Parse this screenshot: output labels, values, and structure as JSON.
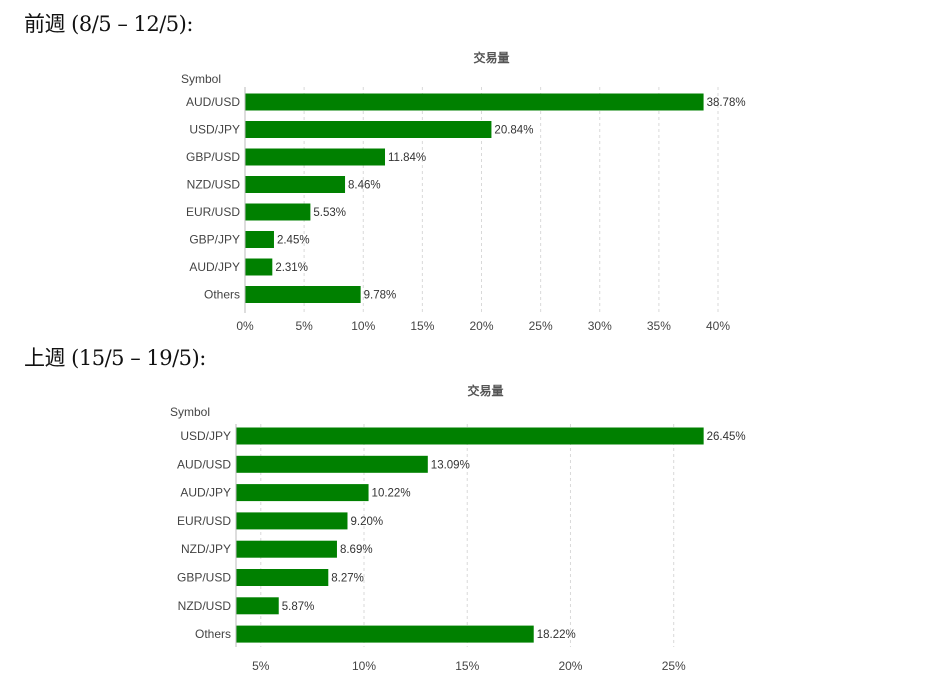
{
  "headings": [
    "前週 (8/5 – 12/5):",
    "上週 (15/5 – 19/5):"
  ],
  "chart_data": [
    {
      "type": "bar",
      "orientation": "horizontal",
      "title": "交易量",
      "ylabel": "Symbol",
      "categories": [
        "AUD/USD",
        "USD/JPY",
        "GBP/USD",
        "NZD/USD",
        "EUR/USD",
        "GBP/JPY",
        "AUD/JPY",
        "Others"
      ],
      "values": [
        38.78,
        20.84,
        11.84,
        8.46,
        5.53,
        2.45,
        2.31,
        9.78
      ],
      "value_labels": [
        "38.78%",
        "20.84%",
        "11.84%",
        "8.46%",
        "5.53%",
        "2.45%",
        "2.31%",
        "9.78%"
      ],
      "xlim": [
        0,
        40
      ],
      "xticks": [
        0,
        5,
        10,
        15,
        20,
        25,
        30,
        35,
        40
      ],
      "xtick_labels": [
        "0%",
        "5%",
        "10%",
        "15%",
        "20%",
        "25%",
        "30%",
        "35%",
        "40%"
      ],
      "bar_color": "#008000",
      "grid": true
    },
    {
      "type": "bar",
      "orientation": "horizontal",
      "title": "交易量",
      "ylabel": "Symbol",
      "categories": [
        "USD/JPY",
        "AUD/USD",
        "AUD/JPY",
        "EUR/USD",
        "NZD/JPY",
        "GBP/USD",
        "NZD/USD",
        "Others"
      ],
      "values": [
        26.45,
        13.09,
        10.22,
        9.2,
        8.69,
        8.27,
        5.87,
        18.22
      ],
      "value_labels": [
        "26.45%",
        "13.09%",
        "10.22%",
        "9.20%",
        "8.69%",
        "8.27%",
        "5.87%",
        "18.22%"
      ],
      "xlim": [
        3.8,
        27
      ],
      "xticks": [
        5,
        10,
        15,
        20,
        25
      ],
      "xtick_labels": [
        "5%",
        "10%",
        "15%",
        "20%",
        "25%"
      ],
      "bar_color": "#008000",
      "grid": true
    }
  ]
}
